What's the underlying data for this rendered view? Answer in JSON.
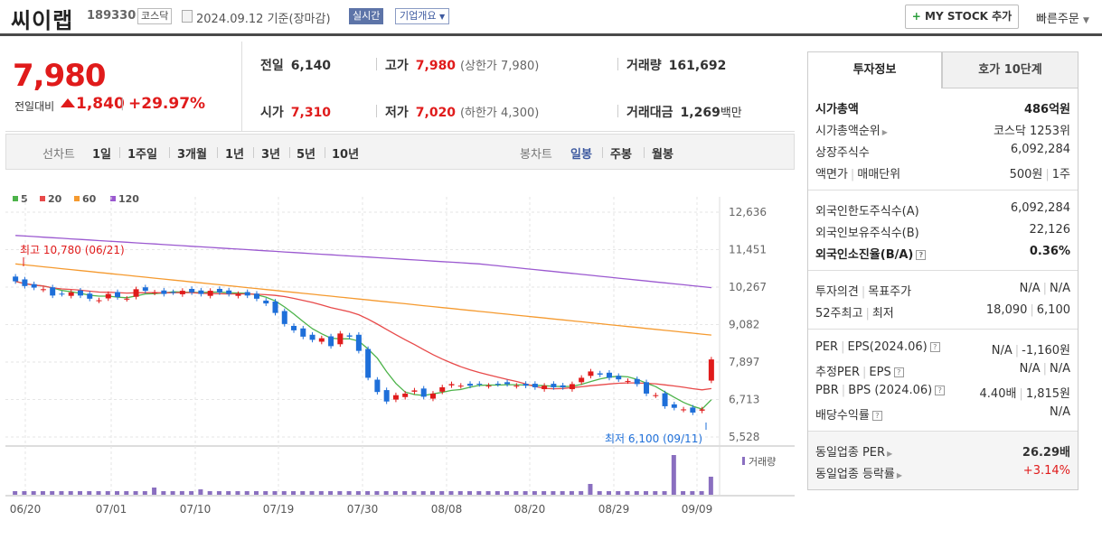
{
  "header": {
    "name": "씨이랩",
    "code": "189330",
    "market": "코스닥",
    "date": "2024.09.12",
    "date_suffix": "기준(장마감)",
    "realtime": "실시간",
    "company_info": "기업개요",
    "mystock": "MY STOCK 추가",
    "quick_order": "빠른주문"
  },
  "price": {
    "current": "7,980",
    "change_label": "전일대비",
    "change": "1,840",
    "change_pct": "+29.97%"
  },
  "quote": {
    "prev": {
      "label": "전일",
      "value": "6,140"
    },
    "high": {
      "label": "고가",
      "value": "7,980",
      "sub": "(상한가 7,980)"
    },
    "volume": {
      "label": "거래량",
      "value": "161,692"
    },
    "open": {
      "label": "시가",
      "value": "7,310"
    },
    "low": {
      "label": "저가",
      "value": "7,020",
      "sub": "(하한가 4,300)"
    },
    "amount": {
      "label": "거래대금",
      "value": "1,269",
      "unit": "백만"
    }
  },
  "periods": {
    "line_label": "선차트",
    "line": [
      "1일",
      "1주일",
      "3개월",
      "1년",
      "3년",
      "5년",
      "10년"
    ],
    "candle_label": "봉차트",
    "candle": [
      "일봉",
      "주봉",
      "월봉"
    ],
    "active": "일봉"
  },
  "chart_data": {
    "type": "candlestick",
    "legend": [
      "5",
      "20",
      "60",
      "120"
    ],
    "colors": {
      "ma5": "#4db34a",
      "ma20": "#e84a4a",
      "ma60": "#f59a2f",
      "ma120": "#9b59d0",
      "up": "#e01b1b",
      "down": "#1e6fd9",
      "volume": "#8a6fc0"
    },
    "y_ticks": [
      "12,636",
      "11,451",
      "10,267",
      "9,082",
      "7,897",
      "6,713",
      "5,528"
    ],
    "ylim": [
      5528,
      12636
    ],
    "x_ticks": [
      "06/20",
      "07/01",
      "07/10",
      "07/19",
      "07/30",
      "08/08",
      "08/20",
      "08/29",
      "09/09"
    ],
    "annotations": {
      "high": "최고 10,780 (06/21)",
      "low": "최저 6,100 (09/11)"
    },
    "volume_label": "거래량"
  },
  "panel": {
    "tabs": [
      "투자정보",
      "호가 10단계"
    ],
    "groups": [
      [
        {
          "l": "시가총액",
          "r": "486억원",
          "bold": true
        },
        {
          "l": "시가총액순위",
          "r": "코스닥 1253위",
          "arrow": true
        },
        {
          "l": "상장주식수",
          "r": "6,092,284"
        },
        {
          "l": "액면가",
          "l2": "매매단위",
          "r": "500원",
          "r2": "1주"
        }
      ],
      [
        {
          "l": "외국인한도주식수(A)",
          "r": "6,092,284"
        },
        {
          "l": "외국인보유주식수(B)",
          "r": "22,126"
        },
        {
          "l": "외국인소진율(B/A)",
          "r": "0.36%",
          "bold": true,
          "q": true
        }
      ],
      [
        {
          "l": "투자의견",
          "l2": "목표주가",
          "r": "N/A",
          "r2": "N/A"
        },
        {
          "l": "52주최고",
          "l2": "최저",
          "r": "18,090",
          "r2": "6,100"
        }
      ],
      [
        {
          "l": "PER",
          "l2": "EPS(2024.06)",
          "r": "N/A",
          "r2": "-1,160원",
          "q": true
        },
        {
          "l": "추정PER",
          "l2": "EPS",
          "r": "N/A",
          "r2": "N/A",
          "q": true
        },
        {
          "l": "PBR",
          "l2": "BPS (2024.06)",
          "r": "4.40배",
          "r2": "1,815원",
          "q": true
        },
        {
          "l": "배당수익률",
          "r": "N/A",
          "q": true
        }
      ],
      [
        {
          "l": "동일업종 PER",
          "r": "26.29배",
          "arrow": true,
          "boldr": true
        },
        {
          "l": "동일업종 등락률",
          "r": "+3.14%",
          "arrow": true,
          "red": true
        }
      ]
    ]
  }
}
